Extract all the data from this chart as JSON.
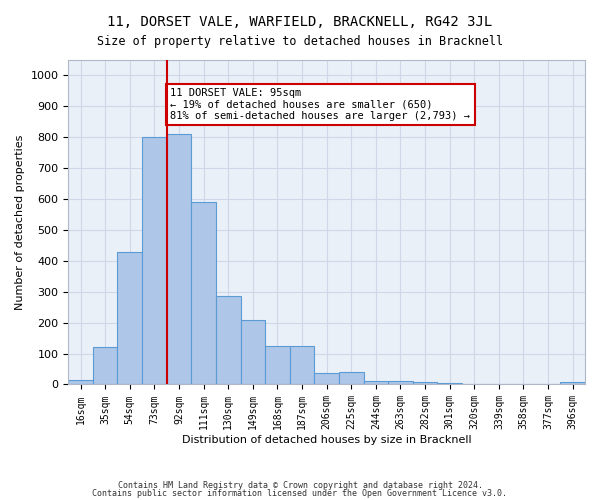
{
  "title": "11, DORSET VALE, WARFIELD, BRACKNELL, RG42 3JL",
  "subtitle": "Size of property relative to detached houses in Bracknell",
  "xlabel": "Distribution of detached houses by size in Bracknell",
  "ylabel": "Number of detached properties",
  "bar_color": "#aec6e8",
  "bar_edge_color": "#5b9bd5",
  "categories": [
    "16sqm",
    "35sqm",
    "54sqm",
    "73sqm",
    "92sqm",
    "111sqm",
    "130sqm",
    "149sqm",
    "168sqm",
    "187sqm",
    "206sqm",
    "225sqm",
    "244sqm",
    "263sqm",
    "282sqm",
    "301sqm",
    "320sqm",
    "339sqm",
    "358sqm",
    "377sqm",
    "396sqm"
  ],
  "values": [
    15,
    120,
    430,
    800,
    810,
    590,
    285,
    210,
    125,
    125,
    38,
    40,
    12,
    10,
    7,
    5,
    0,
    0,
    0,
    0,
    8
  ],
  "ylim": [
    0,
    1050
  ],
  "yticks": [
    0,
    100,
    200,
    300,
    400,
    500,
    600,
    700,
    800,
    900,
    1000
  ],
  "property_line_x": 4,
  "annotation_text": "11 DORSET VALE: 95sqm\n← 19% of detached houses are smaller (650)\n81% of semi-detached houses are larger (2,793) →",
  "annotation_box_color": "#ffffff",
  "annotation_box_edge_color": "#cc0000",
  "vline_color": "#cc0000",
  "background_color": "#ffffff",
  "grid_color": "#d0d8e8",
  "footer_line1": "Contains HM Land Registry data © Crown copyright and database right 2024.",
  "footer_line2": "Contains public sector information licensed under the Open Government Licence v3.0."
}
